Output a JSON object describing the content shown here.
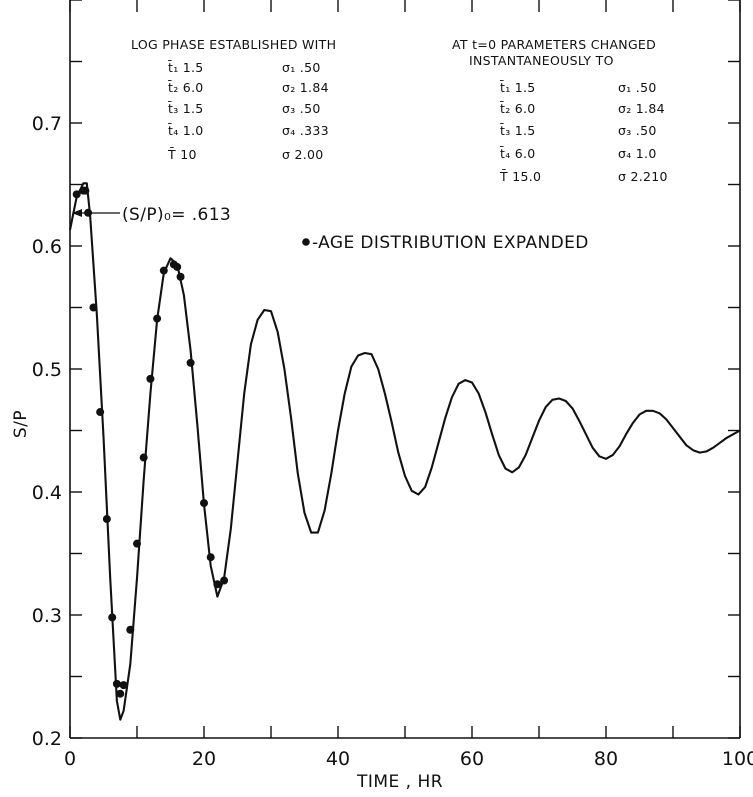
{
  "chart_data": {
    "type": "line",
    "xlabel": "TIME , HR",
    "ylabel": "S/P",
    "xlim": [
      0,
      100
    ],
    "ylim": [
      0.2,
      0.8
    ],
    "x_ticks": [
      0,
      20,
      40,
      60,
      80,
      100
    ],
    "x_tick_labels": [
      "0",
      "20",
      "40",
      "60",
      "80",
      "100"
    ],
    "y_ticks": [
      0.2,
      0.3,
      0.4,
      0.5,
      0.6,
      0.7
    ],
    "y_tick_labels": [
      "0.2",
      "0.3",
      "0.4",
      "0.5",
      "0.6",
      "0.7"
    ],
    "grid": false,
    "series": [
      {
        "kind": "line",
        "x": [
          0,
          1,
          2,
          2.5,
          3,
          4,
          5,
          6,
          7,
          7.5,
          8,
          9,
          10,
          11,
          12,
          13,
          14,
          15,
          16,
          17,
          18,
          19,
          20,
          21,
          22,
          23,
          24,
          25,
          26,
          27,
          28,
          29,
          30,
          31,
          32,
          33,
          34,
          35,
          36,
          37,
          38,
          39,
          40,
          41,
          42,
          43,
          44,
          45,
          46,
          47,
          48,
          49,
          50,
          51,
          52,
          53,
          54,
          55,
          56,
          57,
          58,
          59,
          60,
          61,
          62,
          63,
          64,
          65,
          66,
          67,
          68,
          69,
          70,
          71,
          72,
          73,
          74,
          75,
          76,
          77,
          78,
          79,
          80,
          81,
          82,
          83,
          84,
          85,
          86,
          87,
          88,
          89,
          90,
          91,
          92,
          93,
          94,
          95,
          96,
          97,
          98,
          99,
          100
        ],
        "y": [
          0.613,
          0.64,
          0.651,
          0.651,
          0.625,
          0.545,
          0.445,
          0.33,
          0.23,
          0.215,
          0.222,
          0.26,
          0.33,
          0.41,
          0.48,
          0.54,
          0.578,
          0.59,
          0.585,
          0.56,
          0.515,
          0.455,
          0.39,
          0.34,
          0.315,
          0.33,
          0.37,
          0.425,
          0.48,
          0.52,
          0.54,
          0.548,
          0.547,
          0.53,
          0.5,
          0.46,
          0.415,
          0.383,
          0.367,
          0.367,
          0.385,
          0.415,
          0.45,
          0.48,
          0.502,
          0.511,
          0.513,
          0.512,
          0.5,
          0.48,
          0.457,
          0.432,
          0.413,
          0.401,
          0.398,
          0.404,
          0.42,
          0.44,
          0.46,
          0.477,
          0.488,
          0.491,
          0.489,
          0.48,
          0.465,
          0.447,
          0.43,
          0.419,
          0.416,
          0.42,
          0.43,
          0.444,
          0.458,
          0.469,
          0.475,
          0.476,
          0.474,
          0.468,
          0.458,
          0.447,
          0.436,
          0.429,
          0.427,
          0.43,
          0.437,
          0.447,
          0.456,
          0.463,
          0.466,
          0.466,
          0.464,
          0.459,
          0.452,
          0.445,
          0.438,
          0.434,
          0.432,
          0.433,
          0.436,
          0.44,
          0.444,
          0.447,
          0.45
        ]
      },
      {
        "kind": "scatter",
        "name": "AGE DISTRIBUTION EXPANDED",
        "x": [
          1.0,
          2.0,
          2.3,
          2.7,
          3.5,
          4.5,
          5.5,
          6.3,
          7.0,
          7.5,
          8.0,
          9.0,
          10.0,
          11.0,
          12.0,
          13.0,
          14.0,
          15.5,
          16.0,
          16.5,
          18.0,
          20.0,
          21.0,
          22.0,
          23.0
        ],
        "y": [
          0.642,
          0.645,
          0.645,
          0.627,
          0.55,
          0.465,
          0.378,
          0.298,
          0.244,
          0.236,
          0.243,
          0.288,
          0.358,
          0.428,
          0.492,
          0.541,
          0.58,
          0.585,
          0.583,
          0.575,
          0.505,
          0.391,
          0.347,
          0.325,
          0.328
        ]
      }
    ],
    "annotations": {
      "s0_label": "(S/P)₀= .613",
      "legend_marker": "•",
      "legend_text": "-AGE DISTRIBUTION EXPANDED",
      "left_block": {
        "title": "LOG PHASE ESTABLISHED WITH",
        "rows": [
          [
            "t̄₁  1.5",
            "σ₁  .50"
          ],
          [
            "t̄₂  6.0",
            "σ₂ 1.84"
          ],
          [
            "t̄₃  1.5",
            "σ₃  .50"
          ],
          [
            "t̄₄  1.0",
            "σ₄  .333"
          ],
          [
            "T̄  10",
            "σ 2.00"
          ]
        ]
      },
      "right_block": {
        "title_line1": "AT t=0  PARAMETERS CHANGED",
        "title_line2": "INSTANTANEOUSLY TO",
        "rows": [
          [
            "t̄₁  1.5",
            "σ₁  .50"
          ],
          [
            "t̄₂  6.0",
            "σ₂  1.84"
          ],
          [
            "t̄₃  1.5",
            "σ₃  .50"
          ],
          [
            "t̄₄  6.0",
            "σ₄  1.0"
          ],
          [
            "T̄  15.0",
            "σ  2.210"
          ]
        ]
      }
    }
  }
}
